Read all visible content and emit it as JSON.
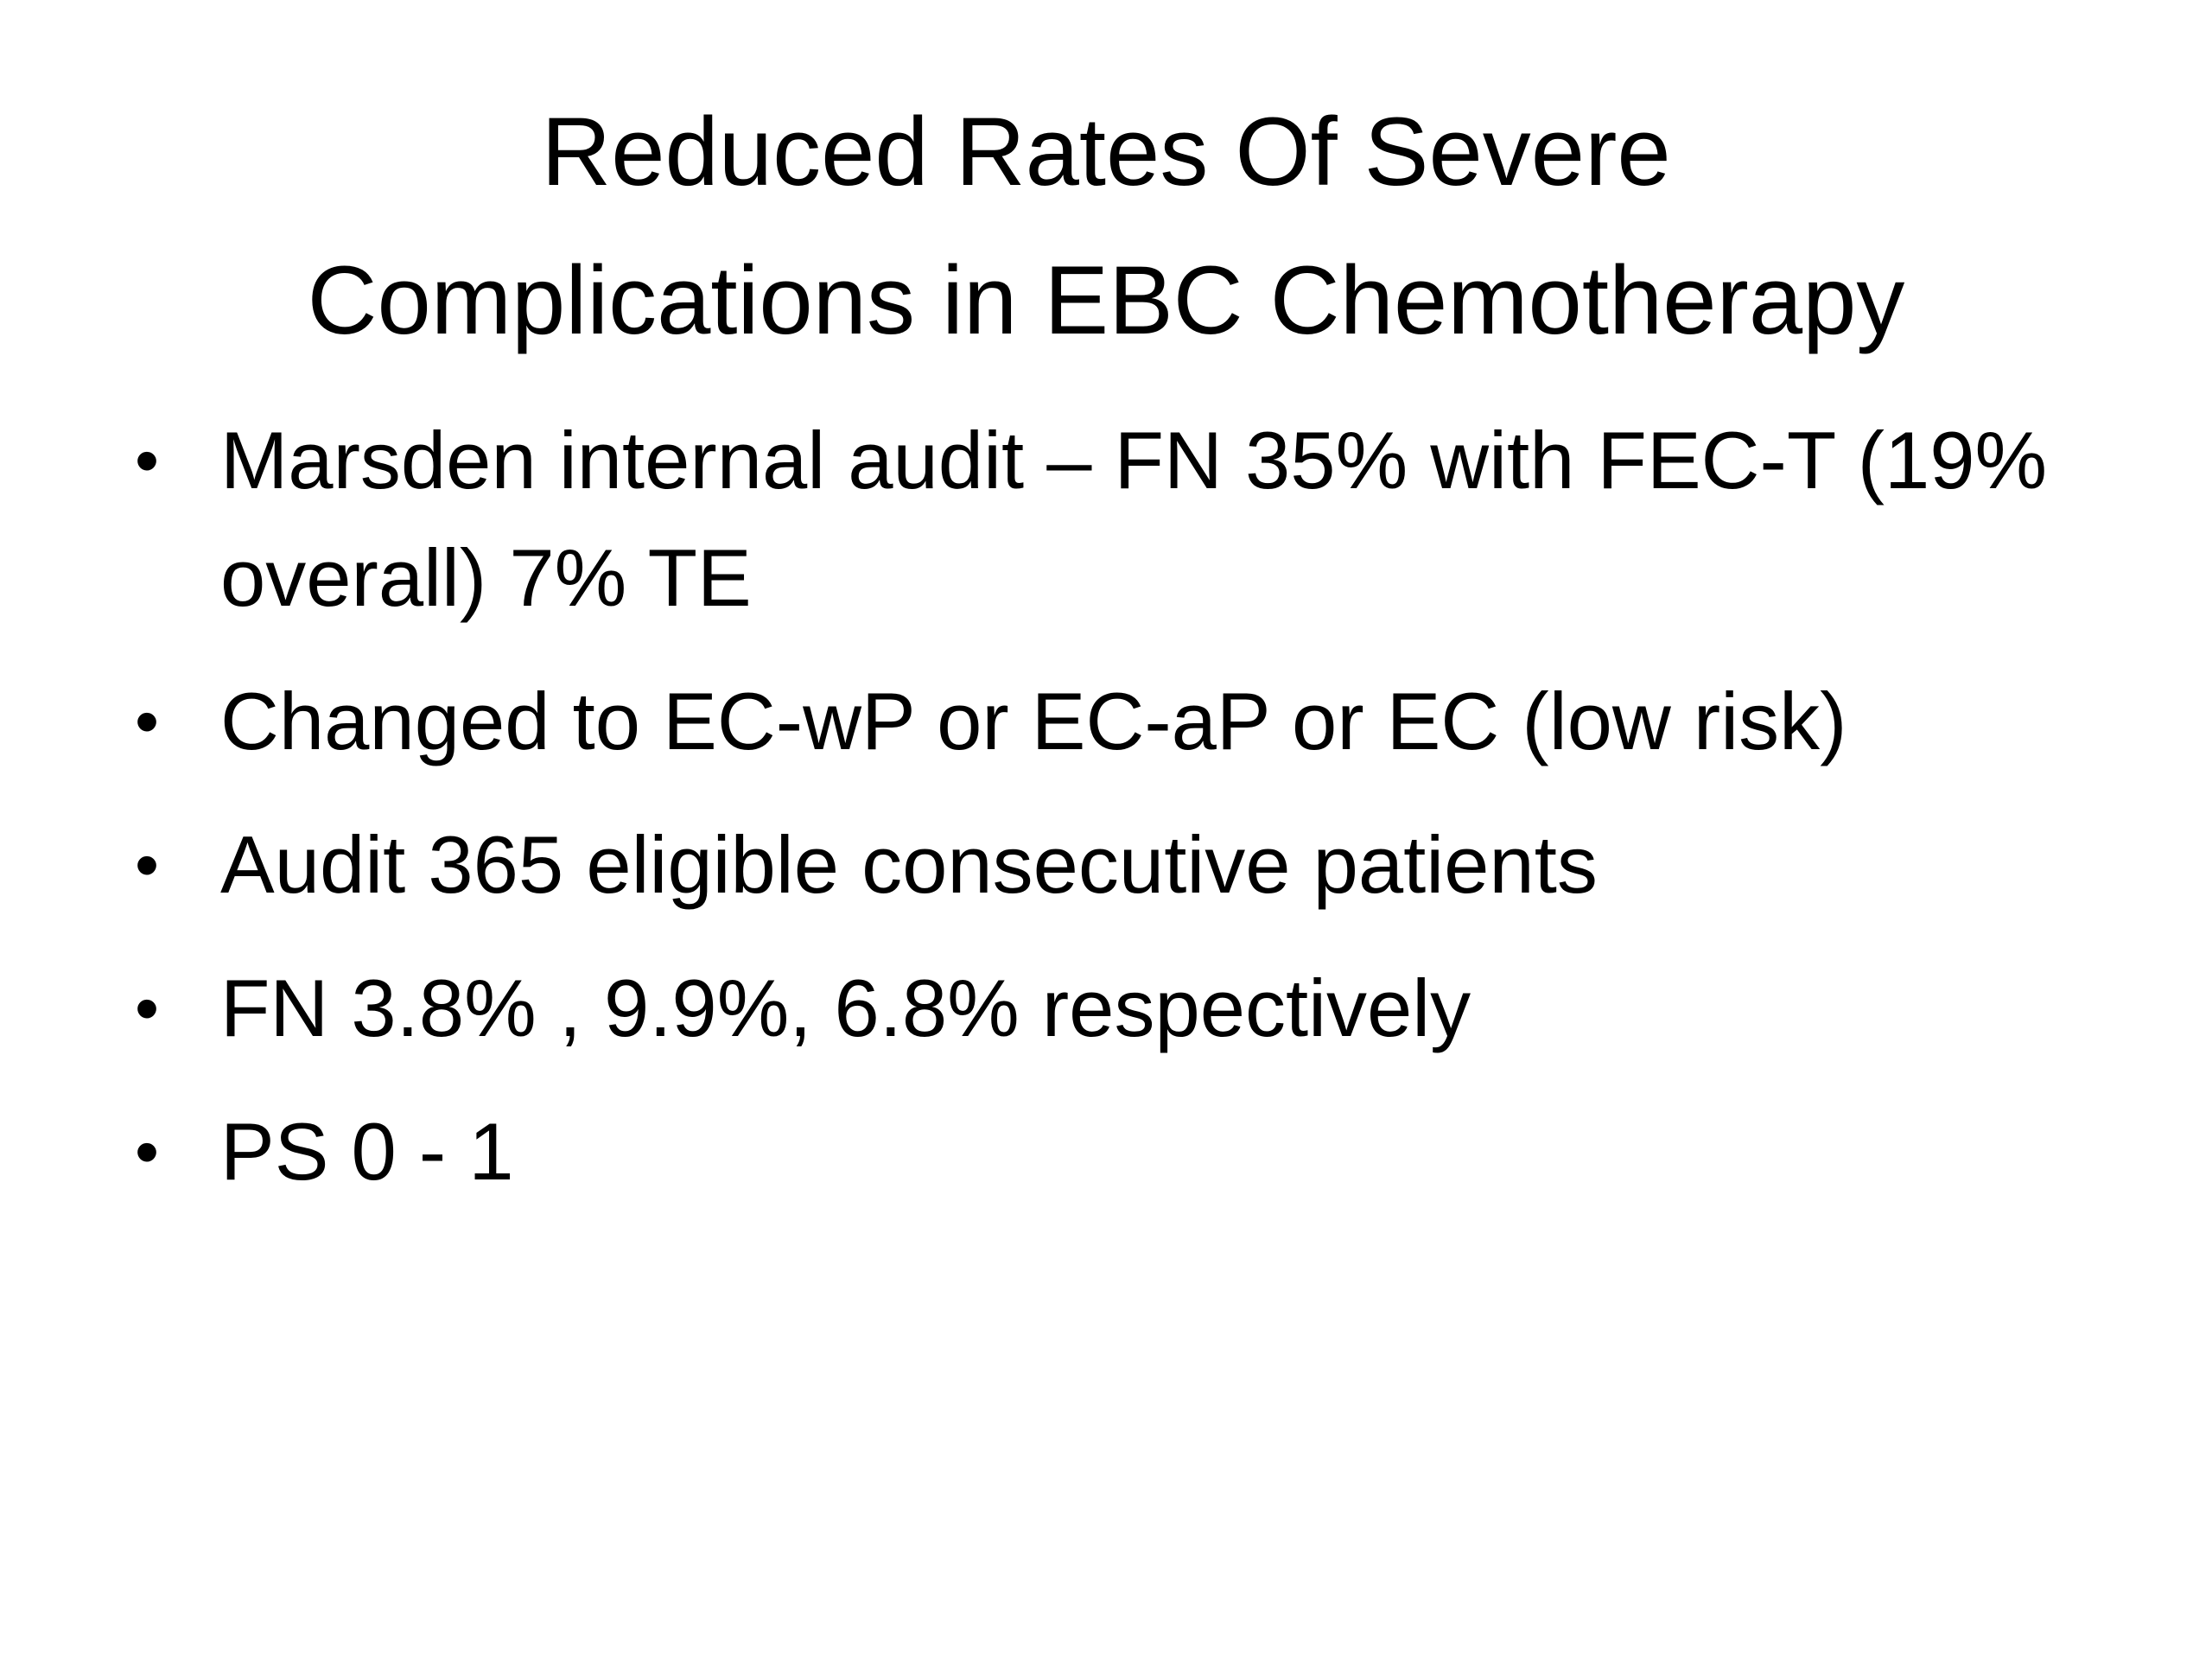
{
  "slide": {
    "title_lines": [
      "Reduced Rates Of Severe",
      "Complications in EBC Chemotherapy"
    ],
    "bullet_glyph": "•",
    "bullets": [
      "Marsden internal audit – FN 35% with FEC-T (19% overall) 7% TE",
      "Changed to EC-wP or EC-aP or EC (low risk)",
      "Audit 365 eligible consecutive patients",
      "FN 3.8% , 9.9%, 6.8% respectively",
      "PS 0 - 1"
    ]
  }
}
